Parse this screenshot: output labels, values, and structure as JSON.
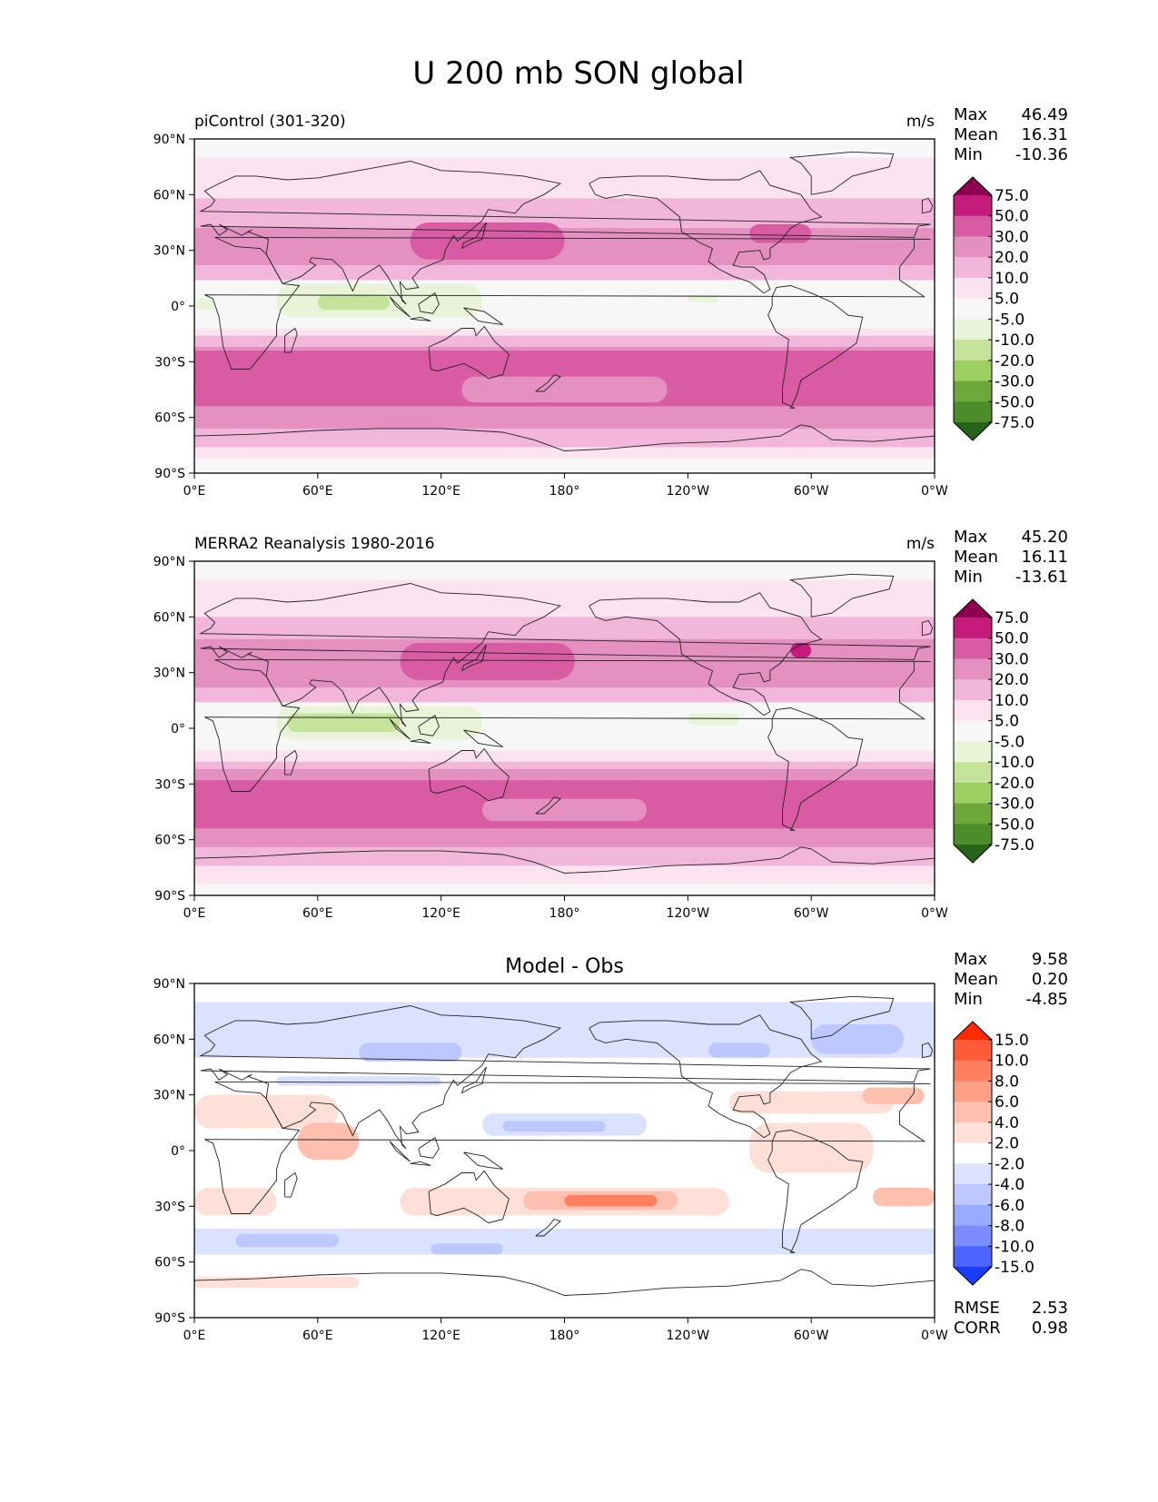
{
  "figure": {
    "title": "U 200 mb SON global"
  },
  "axes": {
    "lon_ticks": [
      "0°E",
      "60°E",
      "120°E",
      "180°",
      "120°W",
      "60°W",
      "0°W"
    ],
    "lat_ticks": [
      "90°N",
      "60°N",
      "30°N",
      "0°",
      "30°S",
      "60°S",
      "90°S"
    ]
  },
  "panels": [
    {
      "title_left": "piControl (301-320)",
      "title_center": "",
      "units": "m/s",
      "stats": [
        {
          "label": "Max",
          "value": "46.49"
        },
        {
          "label": "Mean",
          "value": "16.31"
        },
        {
          "label": "Min",
          "value": "-10.36"
        }
      ],
      "colorbar_id": "field",
      "extra_stats": []
    },
    {
      "title_left": "MERRA2 Reanalysis 1980-2016",
      "title_center": "",
      "units": "m/s",
      "stats": [
        {
          "label": "Max",
          "value": "45.20"
        },
        {
          "label": "Mean",
          "value": "16.11"
        },
        {
          "label": "Min",
          "value": "-13.61"
        }
      ],
      "colorbar_id": "field",
      "extra_stats": []
    },
    {
      "title_left": "",
      "title_center": "Model - Obs",
      "units": "",
      "stats": [
        {
          "label": "Max",
          "value": "9.58"
        },
        {
          "label": "Mean",
          "value": "0.20"
        },
        {
          "label": "Min",
          "value": "-4.85"
        }
      ],
      "colorbar_id": "diff",
      "extra_stats": [
        {
          "label": "RMSE",
          "value": "2.53"
        },
        {
          "label": "CORR",
          "value": "0.98"
        }
      ]
    }
  ],
  "colorbars": {
    "field": {
      "labels": [
        "75.0",
        "50.0",
        "30.0",
        "20.0",
        "10.0",
        "5.0",
        "-5.0",
        "-10.0",
        "-20.0",
        "-30.0",
        "-50.0",
        "-75.0"
      ],
      "colors": [
        "#8e0152",
        "#c51b7d",
        "#d95ba4",
        "#e491c2",
        "#f1b6da",
        "#fbe3f0",
        "#f7f7f7",
        "#e8f3d7",
        "#c5e39b",
        "#9ecf62",
        "#6ea83c",
        "#4d8c2b",
        "#276419"
      ]
    },
    "diff": {
      "labels": [
        "15.0",
        "10.0",
        "8.0",
        "6.0",
        "4.0",
        "2.0",
        "-2.0",
        "-4.0",
        "-6.0",
        "-8.0",
        "-10.0",
        "-15.0"
      ],
      "colors": [
        "#ff2a00",
        "#ff5a3a",
        "#ff7f60",
        "#ff9f85",
        "#ffbfae",
        "#ffe0d8",
        "#ffffff",
        "#dbe2ff",
        "#bcc8ff",
        "#9aabff",
        "#7a8cff",
        "#4e66ff",
        "#1a3cff"
      ]
    }
  }
}
